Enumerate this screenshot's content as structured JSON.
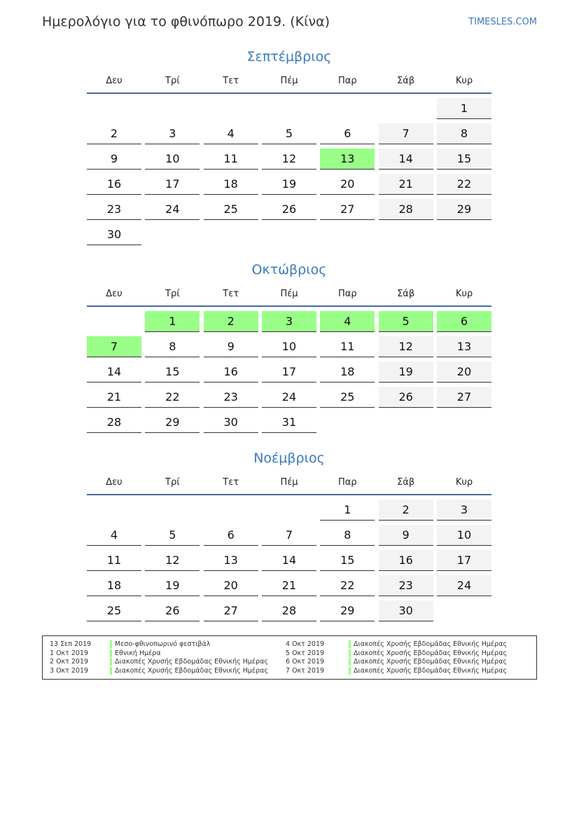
{
  "header": {
    "title": "Ημερολόγιο για το φθινόπωρο 2019. (Κίνα)",
    "site": "TIMESLES.COM"
  },
  "weekdays": [
    "Δευ",
    "Τρί",
    "Τετ",
    "Πέμ",
    "Παρ",
    "Σάβ",
    "Κυρ"
  ],
  "colors": {
    "holiday": "#99ff88",
    "weekend": "#f3f3f3",
    "accent": "#3a7abf"
  },
  "months": [
    {
      "name": "Σεπτέμβριος",
      "weeks": [
        [
          null,
          null,
          null,
          null,
          null,
          null,
          1
        ],
        [
          2,
          3,
          4,
          5,
          6,
          7,
          8
        ],
        [
          9,
          10,
          11,
          12,
          13,
          14,
          15
        ],
        [
          16,
          17,
          18,
          19,
          20,
          21,
          22
        ],
        [
          23,
          24,
          25,
          26,
          27,
          28,
          29
        ],
        [
          30,
          null,
          null,
          null,
          null,
          null,
          null
        ]
      ],
      "holidays": [
        13
      ]
    },
    {
      "name": "Οκτώβριος",
      "weeks": [
        [
          null,
          1,
          2,
          3,
          4,
          5,
          6
        ],
        [
          7,
          8,
          9,
          10,
          11,
          12,
          13
        ],
        [
          14,
          15,
          16,
          17,
          18,
          19,
          20
        ],
        [
          21,
          22,
          23,
          24,
          25,
          26,
          27
        ],
        [
          28,
          29,
          30,
          31,
          null,
          null,
          null
        ]
      ],
      "holidays": [
        1,
        2,
        3,
        4,
        5,
        6,
        7
      ]
    },
    {
      "name": "Νοέμβριος",
      "weeks": [
        [
          null,
          null,
          null,
          null,
          1,
          2,
          3
        ],
        [
          4,
          5,
          6,
          7,
          8,
          9,
          10
        ],
        [
          11,
          12,
          13,
          14,
          15,
          16,
          17
        ],
        [
          18,
          19,
          20,
          21,
          22,
          23,
          24
        ],
        [
          25,
          26,
          27,
          28,
          29,
          30,
          null
        ]
      ],
      "holidays": []
    }
  ],
  "legend": [
    {
      "date": "13 Σεπ 2019",
      "name": "Μεσο-φθινοπωρινό φεστιβάλ"
    },
    {
      "date": "1 Οκτ 2019",
      "name": "Εθνική Ημέρα"
    },
    {
      "date": "2 Οκτ 2019",
      "name": "Διακοπές Χρυσής Εβδομάδας Εθνικής Ημέρας"
    },
    {
      "date": "3 Οκτ 2019",
      "name": "Διακοπές Χρυσής Εβδομάδας Εθνικής Ημέρας"
    },
    {
      "date": "4 Οκτ 2019",
      "name": "Διακοπές Χρυσής Εβδομάδας Εθνικής Ημέρας"
    },
    {
      "date": "5 Οκτ 2019",
      "name": "Διακοπές Χρυσής Εβδομάδας Εθνικής Ημέρας"
    },
    {
      "date": "6 Οκτ 2019",
      "name": "Διακοπές Χρυσής Εβδομάδας Εθνικής Ημέρας"
    },
    {
      "date": "7 Οκτ 2019",
      "name": "Διακοπές Χρυσής Εβδομάδας Εθνικής Ημέρας"
    }
  ]
}
